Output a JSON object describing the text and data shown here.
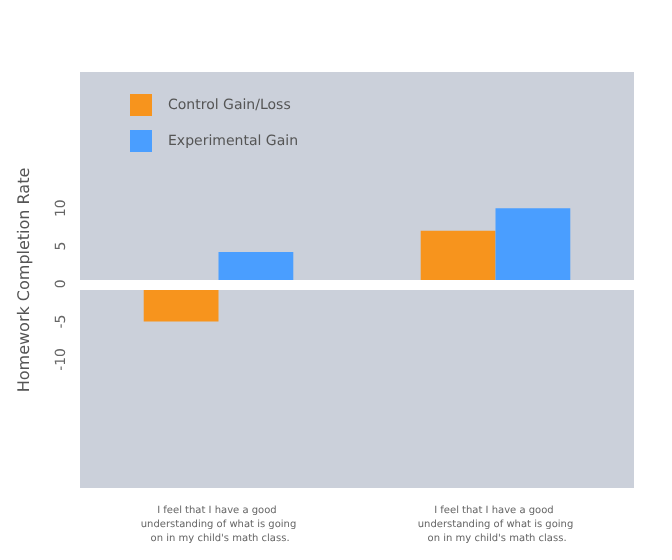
{
  "chart_data": {
    "type": "bar",
    "ylabel": "Homework Completion Rate",
    "categories": [
      "I feel that I have a good understanding of what is going on in my child's math class.",
      "I feel that I have a good understanding of what is going on in my child's math class."
    ],
    "series": [
      {
        "name": "Control Gain/Loss",
        "color": "#f7941d",
        "values": [
          -5,
          7
        ]
      },
      {
        "name": "Experimental Gain",
        "color": "#4a9eff",
        "values": [
          4.2,
          10
        ]
      }
    ],
    "ylim": [
      -27,
      28
    ],
    "yticks": [
      -10,
      -5,
      0,
      5,
      10
    ],
    "grid": false,
    "legend": "top left",
    "ref_lines": [
      {
        "axis": "y",
        "value": 0,
        "color": "#ffffff"
      }
    ]
  }
}
